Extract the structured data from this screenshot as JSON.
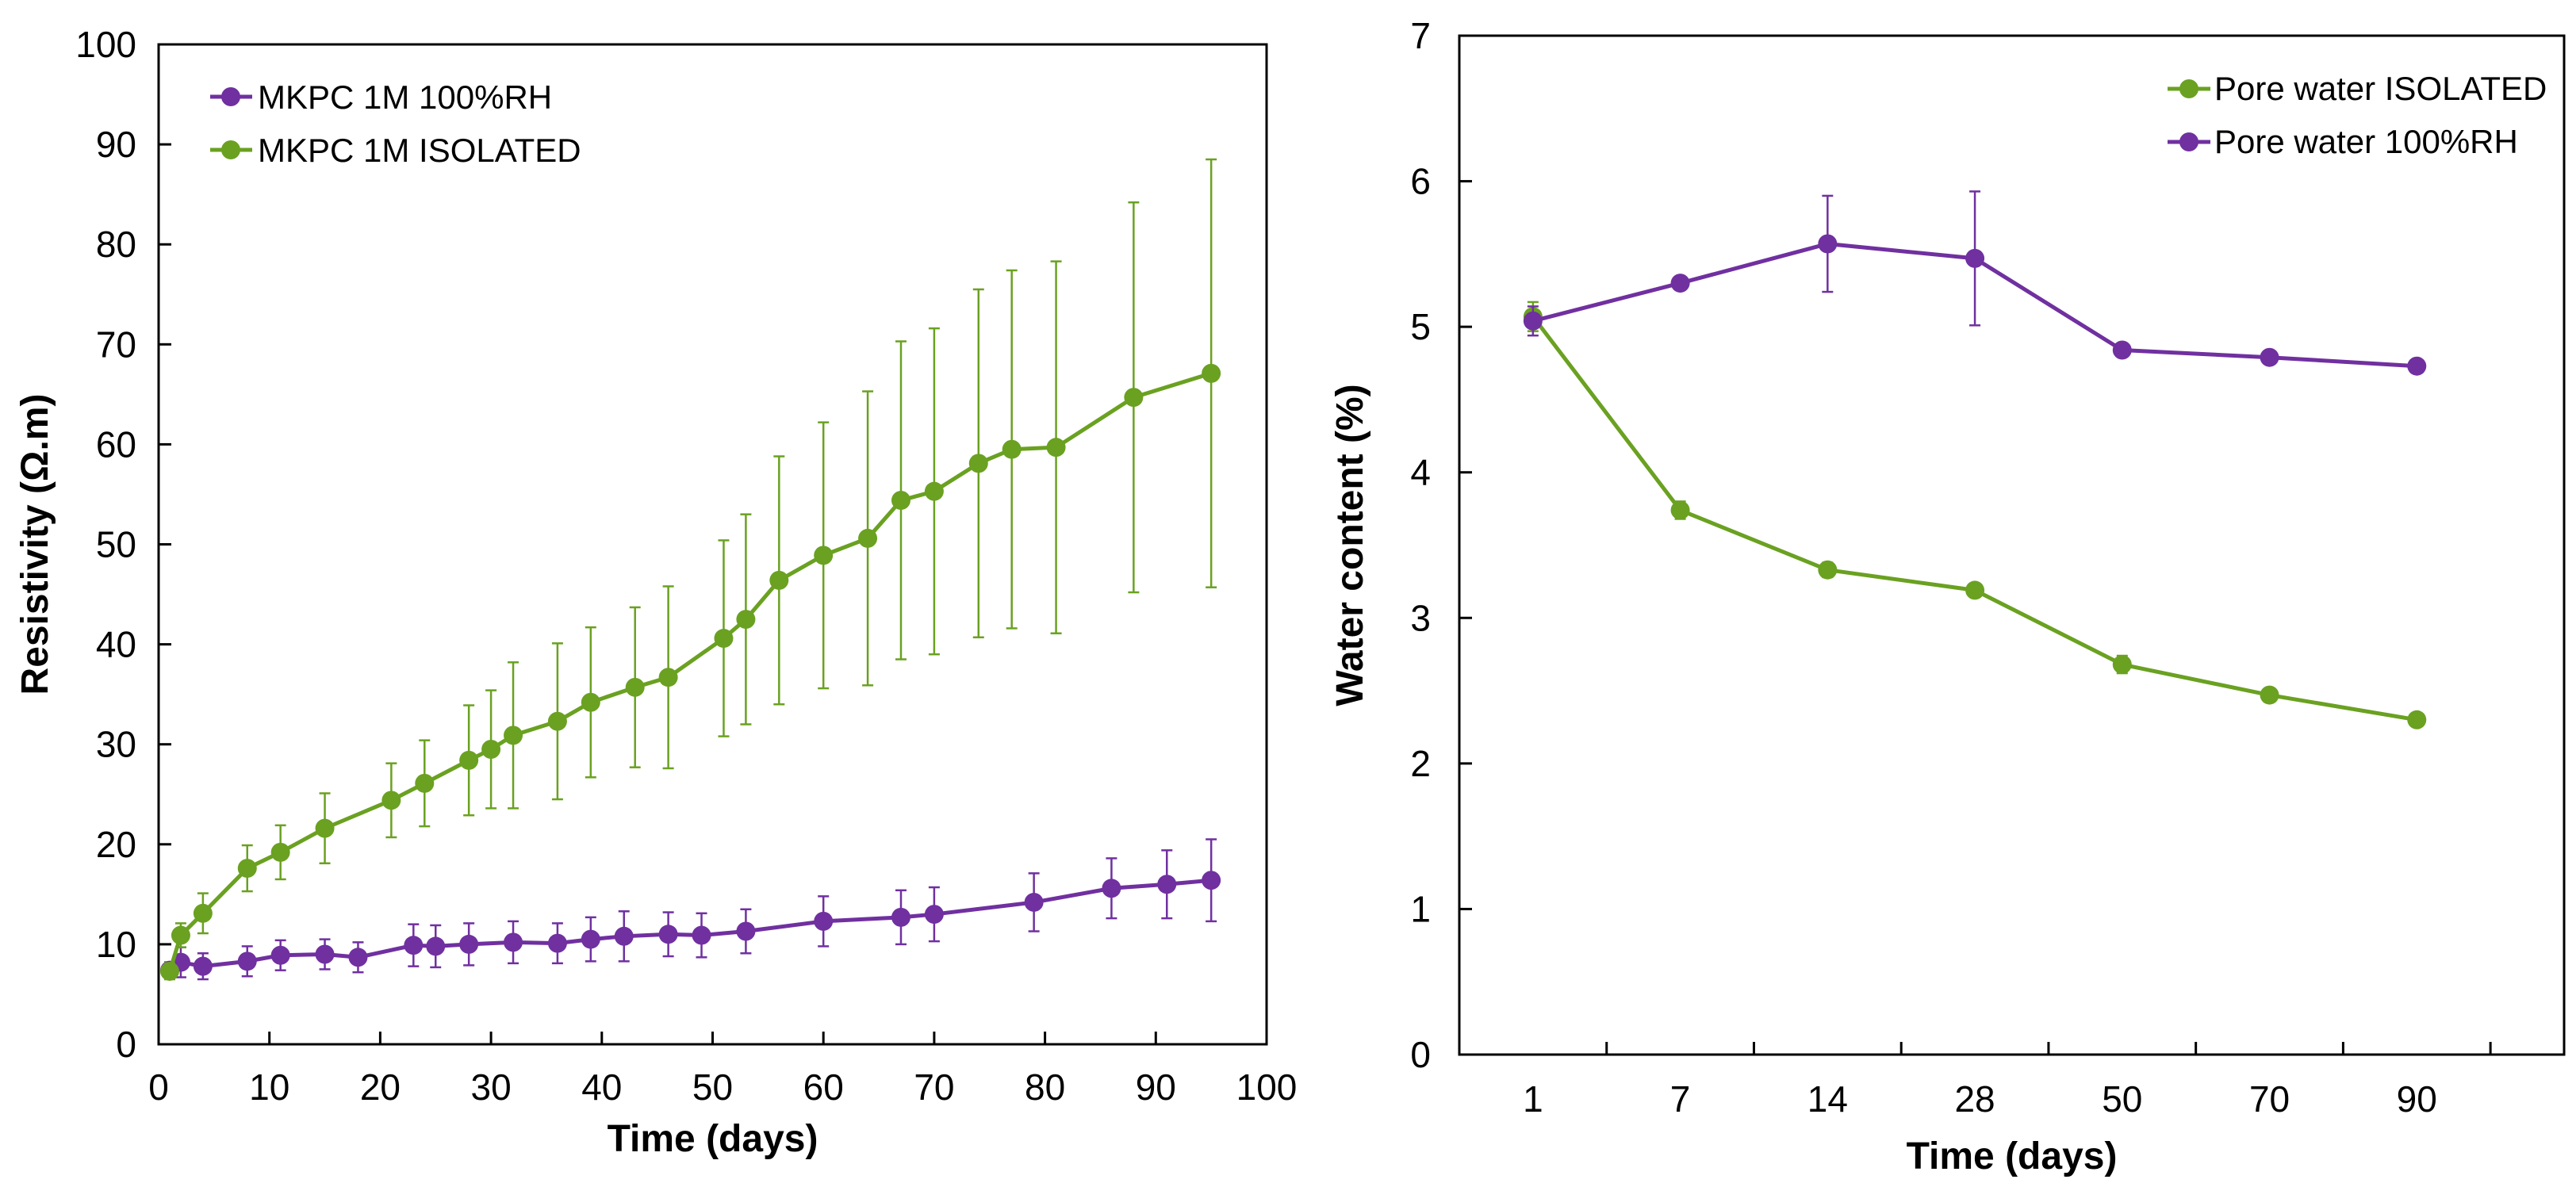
{
  "chart_data": [
    {
      "type": "line",
      "title": "",
      "xlabel": "Time (days)",
      "ylabel": "Resistivity (Ω.m)",
      "xlim": [
        0,
        100
      ],
      "ylim": [
        0,
        100
      ],
      "xticks": [
        0,
        10,
        20,
        30,
        40,
        50,
        60,
        70,
        80,
        90,
        100
      ],
      "yticks": [
        0,
        10,
        20,
        30,
        40,
        50,
        60,
        70,
        80,
        90,
        100
      ],
      "grid": false,
      "legend_position": "top-left",
      "series": [
        {
          "name": "MKPC 1M 100%RH",
          "color": "#7030A0",
          "x": [
            1,
            2,
            4,
            8,
            11,
            15,
            18,
            23,
            25,
            28,
            32,
            36,
            39,
            42,
            46,
            49,
            53,
            60,
            67,
            70,
            79,
            86,
            91,
            95
          ],
          "y": [
            7.4,
            8.2,
            7.8,
            8.3,
            8.9,
            9.0,
            8.7,
            9.9,
            9.8,
            10.0,
            10.2,
            10.1,
            10.5,
            10.8,
            11.0,
            10.9,
            11.3,
            12.3,
            12.7,
            13.0,
            14.2,
            15.6,
            16.0,
            16.4
          ],
          "err": [
            0.8,
            1.5,
            1.3,
            1.5,
            1.5,
            1.5,
            1.5,
            2.1,
            2.1,
            2.1,
            2.1,
            2.0,
            2.2,
            2.5,
            2.2,
            2.2,
            2.2,
            2.5,
            2.7,
            2.7,
            2.9,
            3.0,
            3.4,
            4.1
          ]
        },
        {
          "name": "MKPC 1M ISOLATED",
          "color": "#6AA121",
          "x": [
            1,
            2,
            4,
            8,
            11,
            15,
            21,
            24,
            28,
            30,
            32,
            36,
            39,
            43,
            46,
            51,
            53,
            56,
            60,
            64,
            67,
            70,
            74,
            77,
            81,
            88,
            95
          ],
          "y": [
            7.3,
            10.9,
            13.1,
            17.6,
            19.2,
            21.6,
            24.4,
            26.1,
            28.4,
            29.5,
            30.9,
            32.3,
            34.2,
            35.7,
            36.7,
            40.6,
            42.5,
            46.4,
            48.9,
            50.6,
            54.4,
            55.3,
            58.1,
            59.5,
            59.7,
            64.7,
            67.1
          ],
          "err": [
            0.8,
            1.2,
            2.0,
            2.3,
            2.7,
            3.5,
            3.7,
            4.3,
            5.5,
            5.9,
            7.3,
            7.8,
            7.5,
            8.0,
            9.1,
            9.8,
            10.5,
            12.4,
            13.3,
            14.7,
            15.9,
            16.3,
            17.4,
            17.9,
            18.6,
            19.5,
            21.4
          ]
        }
      ]
    },
    {
      "type": "line",
      "title": "",
      "xlabel": "Time (days)",
      "ylabel": "Water content (%)",
      "categories": [
        "1",
        "7",
        "14",
        "28",
        "50",
        "70",
        "90"
      ],
      "ylim": [
        0,
        7
      ],
      "yticks": [
        0,
        1,
        2,
        3,
        4,
        5,
        6,
        7
      ],
      "grid": false,
      "legend_position": "top-right",
      "series": [
        {
          "name": "Pore water ISOLATED",
          "color": "#6AA121",
          "values": [
            5.07,
            3.74,
            3.33,
            3.19,
            2.68,
            2.47,
            2.3
          ],
          "err": [
            0.1,
            0.06,
            0.05,
            0.03,
            0.06,
            0.03,
            0.02
          ]
        },
        {
          "name": "Pore water 100%RH",
          "color": "#7030A0",
          "values": [
            5.04,
            5.3,
            5.57,
            5.47,
            4.84,
            4.79,
            4.73
          ],
          "err": [
            0.1,
            0.02,
            0.33,
            0.46,
            0.02,
            0.02,
            0.02
          ]
        }
      ]
    }
  ]
}
